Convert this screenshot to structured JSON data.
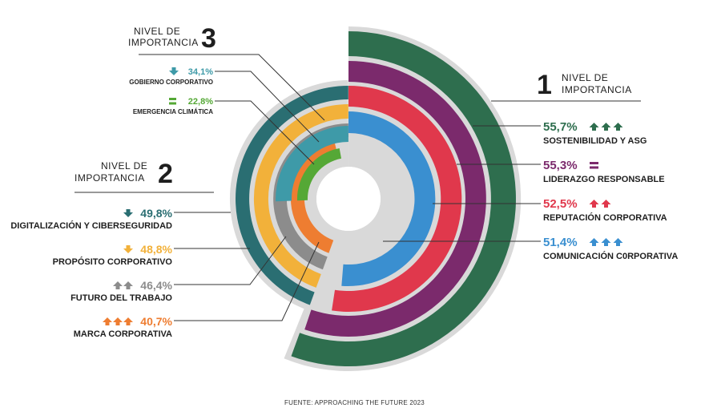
{
  "chart_data": {
    "type": "radial-bar",
    "groups": [
      {
        "level_label": "NIVEL DE IMPORTANCIA",
        "level_number": "1",
        "items": [
          {
            "name": "SOSTENIBILIDAD Y ASG",
            "value": 55.7,
            "value_label": "55,7%",
            "trend": "up",
            "arrows": 3,
            "color": "#2e6e4e"
          },
          {
            "name": "LIDERAZGO RESPONSABLE",
            "value": 55.3,
            "value_label": "55,3%",
            "trend": "equal",
            "arrows": 1,
            "color": "#7b2a6c"
          },
          {
            "name": "REPUTACIÓN CORPORATIVA",
            "value": 52.5,
            "value_label": "52,5%",
            "trend": "up",
            "arrows": 2,
            "color": "#e0384c"
          },
          {
            "name": "COMUNICACIÓN C0RPORATIVA",
            "value": 51.4,
            "value_label": "51,4%",
            "trend": "up",
            "arrows": 3,
            "color": "#3a8fd0"
          }
        ]
      },
      {
        "level_label": "NIVEL DE IMPORTANCIA",
        "level_number": "2",
        "items": [
          {
            "name": "DIGITALIZACIÓN Y CIBERSEGURIDAD",
            "value": 49.8,
            "value_label": "49,8%",
            "trend": "down",
            "arrows": 1,
            "color": "#2a6e72"
          },
          {
            "name": "PROPÓSITO CORPORATIVO",
            "value": 48.8,
            "value_label": "48,8%",
            "trend": "down",
            "arrows": 1,
            "color": "#f2b13a"
          },
          {
            "name": "FUTURO DEL TRABAJO",
            "value": 46.4,
            "value_label": "46,4%",
            "trend": "up",
            "arrows": 2,
            "color": "#8c8c8c"
          },
          {
            "name": "MARCA CORPORATIVA",
            "value": 40.7,
            "value_label": "40,7%",
            "trend": "up",
            "arrows": 3,
            "color": "#ee7d31"
          }
        ]
      },
      {
        "level_label": "NIVEL DE IMPORTANCIA",
        "level_number": "3",
        "items": [
          {
            "name": "GOBIERNO CORPORATIVO",
            "value": 34.1,
            "value_label": "34,1%",
            "trend": "down",
            "arrows": 1,
            "color": "#3e9aa8"
          },
          {
            "name": "EMERGENCIA CLIMÁTICA",
            "value": 22.8,
            "value_label": "22,8%",
            "trend": "equal",
            "arrows": 1,
            "color": "#55a836"
          }
        ]
      }
    ],
    "source": "FUENTE: APPROACHING THE FUTURE 2023"
  }
}
